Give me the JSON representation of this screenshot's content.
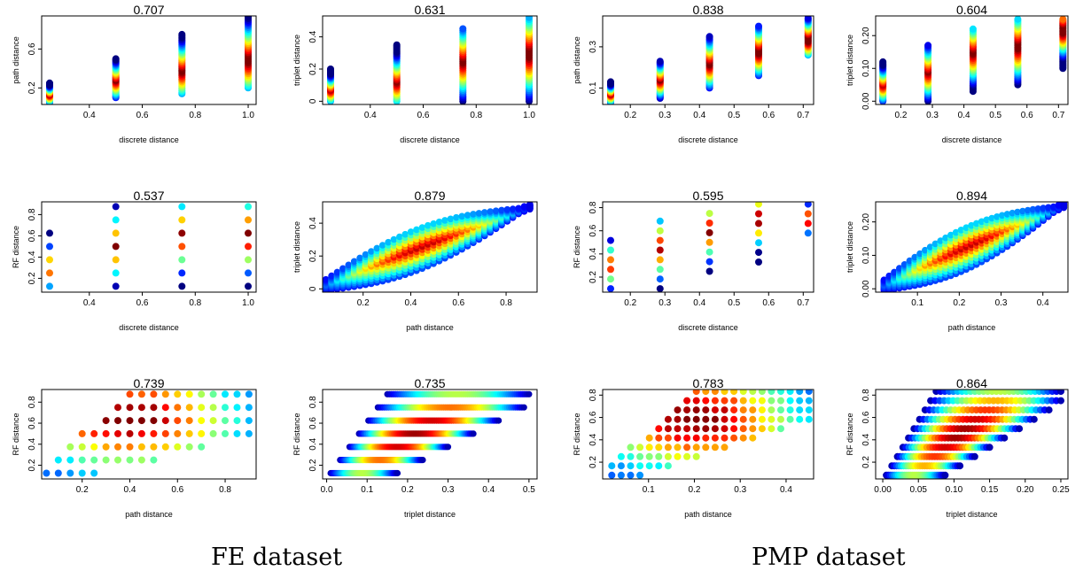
{
  "captions": [
    "FE dataset",
    "PMP dataset"
  ],
  "chart_data": [
    {
      "type": "scatter",
      "title": "0.707",
      "xlabel": "discrete distance",
      "ylabel": "path distance",
      "xlim": [
        0.22,
        1.03
      ],
      "ylim": [
        0.03,
        0.94
      ],
      "xticks": [
        "0.4",
        "0.6",
        "0.8",
        "1.0"
      ],
      "yticks": [
        "0.2",
        "0.6"
      ],
      "x": [
        0.25,
        0.5,
        0.75,
        1.0
      ],
      "y_min": [
        0.05,
        0.1,
        0.14,
        0.2
      ],
      "y_max": [
        0.25,
        0.5,
        0.75,
        0.93
      ],
      "y_peak": [
        0.13,
        0.28,
        0.38,
        0.5
      ],
      "rows": [
        0,
        1
      ],
      "ytick_values": [
        0.2,
        0.6
      ],
      "xtick_values": [
        0.4,
        0.6,
        0.8,
        1.0
      ]
    },
    {
      "type": "scatter",
      "title": "0.631",
      "xlabel": "discrete distance",
      "ylabel": "triplet distance",
      "xlim": [
        0.22,
        1.03
      ],
      "ylim": [
        -0.02,
        0.53
      ],
      "xticks": [
        "0.4",
        "0.6",
        "0.8",
        "1.0"
      ],
      "yticks": [
        "0",
        "0.2",
        "0.4"
      ],
      "x": [
        0.25,
        0.5,
        0.75,
        1.0
      ],
      "y_min": [
        0.0,
        0.0,
        0.0,
        0.0
      ],
      "y_max": [
        0.2,
        0.35,
        0.45,
        0.52
      ],
      "y_peak": [
        0.07,
        0.12,
        0.25,
        0.3
      ],
      "ytick_values": [
        0,
        0.2,
        0.4
      ],
      "xtick_values": [
        0.4,
        0.6,
        0.8,
        1.0
      ]
    },
    {
      "type": "scatter",
      "title": "0.838",
      "xlabel": "discrete distance",
      "ylabel": "path distance",
      "xlim": [
        0.12,
        0.73
      ],
      "ylim": [
        0.02,
        0.45
      ],
      "xticks": [
        "0.2",
        "0.3",
        "0.4",
        "0.5",
        "0.6",
        "0.7"
      ],
      "yticks": [
        "0.1",
        "0.3"
      ],
      "x": [
        0.143,
        0.286,
        0.429,
        0.571,
        0.714
      ],
      "y_min": [
        0.03,
        0.05,
        0.1,
        0.16,
        0.26
      ],
      "y_max": [
        0.13,
        0.23,
        0.35,
        0.4,
        0.44
      ],
      "y_peak": [
        0.07,
        0.14,
        0.22,
        0.28,
        0.34
      ],
      "ytick_values": [
        0.1,
        0.3
      ],
      "xtick_values": [
        0.2,
        0.3,
        0.4,
        0.5,
        0.6,
        0.7
      ]
    },
    {
      "type": "scatter",
      "title": "0.604",
      "xlabel": "discrete distance",
      "ylabel": "triplet distance",
      "xlim": [
        0.12,
        0.73
      ],
      "ylim": [
        -0.01,
        0.26
      ],
      "xticks": [
        "0.2",
        "0.3",
        "0.4",
        "0.5",
        "0.6",
        "0.7"
      ],
      "yticks": [
        "0.00",
        "0.10",
        "0.20"
      ],
      "x": [
        0.143,
        0.286,
        0.429,
        0.571,
        0.714
      ],
      "y_min": [
        0.0,
        0.0,
        0.03,
        0.05,
        0.1
      ],
      "y_max": [
        0.12,
        0.17,
        0.22,
        0.25,
        0.25
      ],
      "y_peak": [
        0.05,
        0.09,
        0.15,
        0.17,
        0.22
      ],
      "ytick_values": [
        0,
        0.1,
        0.2
      ],
      "xtick_values": [
        0.2,
        0.3,
        0.4,
        0.5,
        0.6,
        0.7
      ]
    },
    {
      "type": "scatter",
      "title": "0.537",
      "xlabel": "discrete distance",
      "ylabel": "RF distance",
      "xlim": [
        0.22,
        1.03
      ],
      "ylim": [
        0.07,
        0.92
      ],
      "xticks": [
        "0.4",
        "0.6",
        "0.8",
        "1.0"
      ],
      "yticks": [
        "0.2",
        "0.4",
        "0.6",
        "0.8"
      ],
      "x": [
        0.25,
        0.5,
        0.75,
        1.0
      ],
      "y_min": [
        0.125,
        0.125,
        0.125,
        0.125
      ],
      "y_max": [
        0.625,
        0.875,
        0.875,
        0.875
      ],
      "y_peak": [
        0.3,
        0.5,
        0.6,
        0.6
      ],
      "ytick_values": [
        0.2,
        0.4,
        0.6,
        0.8
      ],
      "xtick_values": [
        0.4,
        0.6,
        0.8,
        1.0
      ]
    },
    {
      "type": "scatter",
      "title": "0.879",
      "xlabel": "path distance",
      "ylabel": "triplet distance",
      "xlim": [
        0.03,
        0.93
      ],
      "ylim": [
        -0.02,
        0.53
      ],
      "xticks": [
        "0.2",
        "0.4",
        "0.6",
        "0.8"
      ],
      "yticks": [
        "0",
        "0.2",
        "0.4"
      ],
      "ytick_values": [
        0,
        0.2,
        0.4
      ],
      "xtick_values": [
        0.2,
        0.4,
        0.6,
        0.8
      ]
    },
    {
      "type": "scatter",
      "title": "0.595",
      "xlabel": "discrete distance",
      "ylabel": "RF distance",
      "xlim": [
        0.12,
        0.73
      ],
      "ylim": [
        0.07,
        0.85
      ],
      "xticks": [
        "0.2",
        "0.3",
        "0.4",
        "0.5",
        "0.6",
        "0.7"
      ],
      "yticks": [
        "0.2",
        "0.4",
        "0.6",
        "0.8"
      ],
      "x": [
        0.143,
        0.286,
        0.429,
        0.571,
        0.714
      ],
      "y_min": [
        0.1,
        0.1,
        0.25,
        0.33,
        0.58
      ],
      "y_max": [
        0.58,
        0.75,
        0.83,
        0.83,
        0.83
      ],
      "y_peak": [
        0.3,
        0.45,
        0.6,
        0.7,
        0.7
      ],
      "ytick_values": [
        0.2,
        0.4,
        0.6,
        0.8
      ],
      "xtick_values": [
        0.2,
        0.3,
        0.4,
        0.5,
        0.6,
        0.7
      ]
    },
    {
      "type": "scatter",
      "title": "0.894",
      "xlabel": "path distance",
      "ylabel": "triplet distance",
      "xlim": [
        0.0,
        0.46
      ],
      "ylim": [
        -0.01,
        0.26
      ],
      "xticks": [
        "0.1",
        "0.2",
        "0.3",
        "0.4"
      ],
      "yticks": [
        "0.00",
        "0.10",
        "0.20"
      ],
      "ytick_values": [
        0,
        0.1,
        0.2
      ],
      "xtick_values": [
        0.1,
        0.2,
        0.3,
        0.4
      ]
    },
    {
      "type": "scatter",
      "title": "0.739",
      "xlabel": "path distance",
      "ylabel": "RF distance",
      "xlim": [
        0.03,
        0.93
      ],
      "ylim": [
        0.07,
        0.92
      ],
      "xticks": [
        "0.2",
        "0.4",
        "0.6",
        "0.8"
      ],
      "yticks": [
        "0.2",
        "0.4",
        "0.6",
        "0.8"
      ],
      "ytick_values": [
        0.2,
        0.4,
        0.6,
        0.8
      ],
      "xtick_values": [
        0.2,
        0.4,
        0.6,
        0.8
      ]
    },
    {
      "type": "scatter",
      "title": "0.735",
      "xlabel": "triplet distance",
      "ylabel": "RF distance",
      "xlim": [
        -0.01,
        0.52
      ],
      "ylim": [
        0.07,
        0.92
      ],
      "xticks": [
        "0.0",
        "0.1",
        "0.2",
        "0.3",
        "0.4",
        "0.5"
      ],
      "yticks": [
        "0.2",
        "0.4",
        "0.6",
        "0.8"
      ],
      "ytick_values": [
        0.2,
        0.4,
        0.6,
        0.8
      ],
      "xtick_values": [
        0,
        0.1,
        0.2,
        0.3,
        0.4,
        0.5
      ]
    },
    {
      "type": "scatter",
      "title": "0.783",
      "xlabel": "path distance",
      "ylabel": "RF distance",
      "xlim": [
        0.0,
        0.46
      ],
      "ylim": [
        0.05,
        0.85
      ],
      "xticks": [
        "0.1",
        "0.2",
        "0.3",
        "0.4"
      ],
      "yticks": [
        "0.2",
        "0.4",
        "0.6",
        "0.8"
      ],
      "ytick_values": [
        0.2,
        0.4,
        0.6,
        0.8
      ],
      "xtick_values": [
        0.1,
        0.2,
        0.3,
        0.4
      ]
    },
    {
      "type": "scatter",
      "title": "0.864",
      "xlabel": "triplet distance",
      "ylabel": "RF distance",
      "xlim": [
        -0.01,
        0.26
      ],
      "ylim": [
        0.05,
        0.85
      ],
      "xticks": [
        "0.00",
        "0.05",
        "0.10",
        "0.15",
        "0.20",
        "0.25"
      ],
      "yticks": [
        "0.2",
        "0.4",
        "0.6",
        "0.8"
      ],
      "ytick_values": [
        0.2,
        0.4,
        0.6,
        0.8
      ],
      "xtick_values": [
        0,
        0.05,
        0.1,
        0.15,
        0.2,
        0.25
      ]
    }
  ]
}
